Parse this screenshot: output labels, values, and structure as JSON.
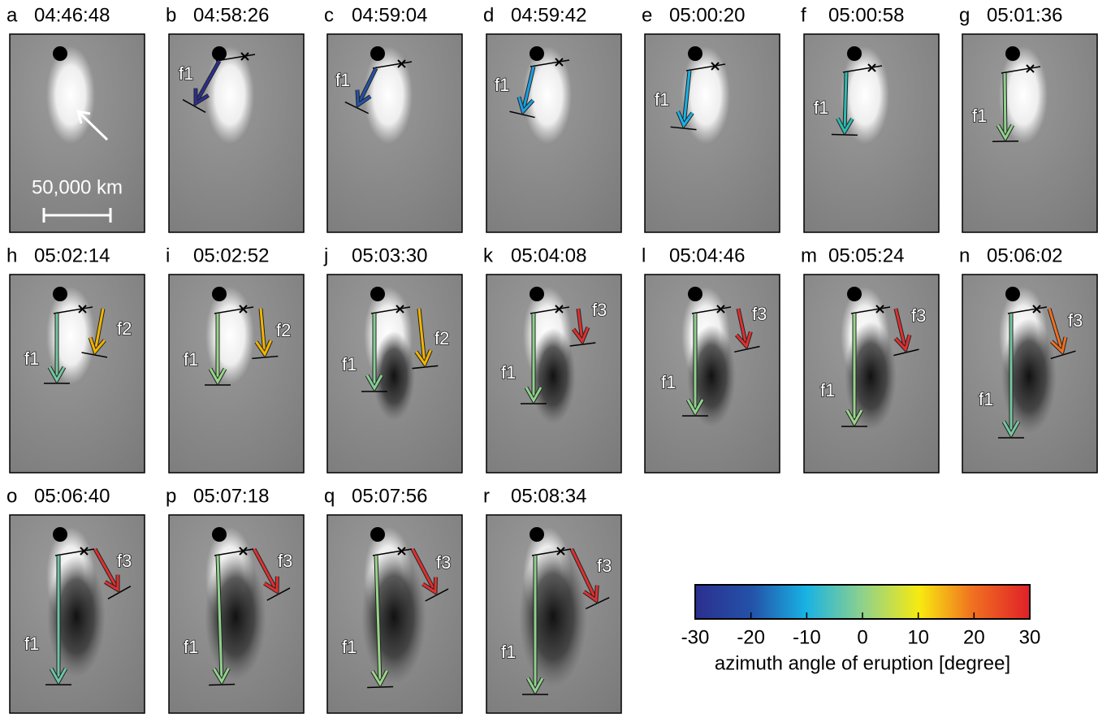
{
  "panels": [
    {
      "letter": "a",
      "time": "04:46:48",
      "scale_bar": "50,000 km"
    },
    {
      "letter": "b",
      "time": "04:58:26",
      "arrows": [
        {
          "label": "f1",
          "color": "#2b2f8f"
        }
      ]
    },
    {
      "letter": "c",
      "time": "04:59:04",
      "arrows": [
        {
          "label": "f1",
          "color": "#2452a8"
        }
      ]
    },
    {
      "letter": "d",
      "time": "04:59:42",
      "arrows": [
        {
          "label": "f1",
          "color": "#1aa0e0"
        }
      ]
    },
    {
      "letter": "e",
      "time": "05:00:20",
      "arrows": [
        {
          "label": "f1",
          "color": "#18b2e4"
        }
      ]
    },
    {
      "letter": "f",
      "time": "05:00:58",
      "arrows": [
        {
          "label": "f1",
          "color": "#2bbcb0"
        }
      ]
    },
    {
      "letter": "g",
      "time": "05:01:36",
      "arrows": [
        {
          "label": "f1",
          "color": "#8fd18c"
        }
      ]
    },
    {
      "letter": "h",
      "time": "05:02:14",
      "arrows": [
        {
          "label": "f1",
          "color": "#74c8a0"
        },
        {
          "label": "f2",
          "color": "#f2b400"
        }
      ]
    },
    {
      "letter": "i",
      "time": "05:02:52",
      "arrows": [
        {
          "label": "f1",
          "color": "#9ad48a"
        },
        {
          "label": "f2",
          "color": "#f2b400"
        }
      ]
    },
    {
      "letter": "j",
      "time": "05:03:30",
      "arrows": [
        {
          "label": "f1",
          "color": "#85cf95"
        },
        {
          "label": "f2",
          "color": "#f2b400"
        }
      ]
    },
    {
      "letter": "k",
      "time": "05:04:08",
      "arrows": [
        {
          "label": "f1",
          "color": "#8fd18c"
        },
        {
          "label": "f3",
          "color": "#e03030"
        }
      ]
    },
    {
      "letter": "l",
      "time": "05:04:46",
      "arrows": [
        {
          "label": "f1",
          "color": "#8fd18c"
        },
        {
          "label": "f3",
          "color": "#e03030"
        }
      ]
    },
    {
      "letter": "m",
      "time": "05:05:24",
      "arrows": [
        {
          "label": "f1",
          "color": "#9ad48a"
        },
        {
          "label": "f3",
          "color": "#e03030"
        }
      ]
    },
    {
      "letter": "n",
      "time": "05:06:02",
      "arrows": [
        {
          "label": "f1",
          "color": "#74c8a0"
        },
        {
          "label": "f3",
          "color": "#f07020"
        }
      ]
    },
    {
      "letter": "o",
      "time": "05:06:40",
      "arrows": [
        {
          "label": "f1",
          "color": "#6cc4a8"
        },
        {
          "label": "f3",
          "color": "#e03030"
        }
      ]
    },
    {
      "letter": "p",
      "time": "05:07:18",
      "arrows": [
        {
          "label": "f1",
          "color": "#8fd18c"
        },
        {
          "label": "f3",
          "color": "#e03030"
        }
      ]
    },
    {
      "letter": "q",
      "time": "05:07:56",
      "arrows": [
        {
          "label": "f1",
          "color": "#9ad48a"
        },
        {
          "label": "f3",
          "color": "#e03030"
        }
      ]
    },
    {
      "letter": "r",
      "time": "05:08:34",
      "arrows": [
        {
          "label": "f1",
          "color": "#8fd18c"
        },
        {
          "label": "f3",
          "color": "#e03030"
        }
      ]
    }
  ],
  "colorbar": {
    "lim": [
      -30,
      30
    ],
    "ticks": [
      -30,
      -20,
      -10,
      0,
      10,
      20,
      30
    ],
    "label": "azimuth angle of eruption [degree]"
  }
}
